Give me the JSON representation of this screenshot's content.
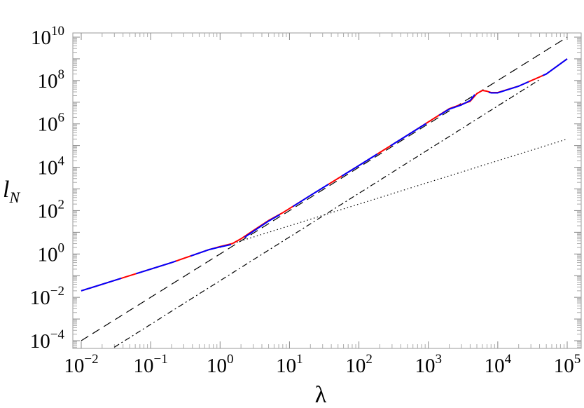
{
  "chart_data": {
    "type": "line",
    "title": "",
    "xlabel": "λ",
    "ylabel": "l",
    "ylabel_subscript": "N",
    "x_scale": "log",
    "y_scale": "log",
    "xlim": [
      0.01,
      100000
    ],
    "ylim": [
      5e-05,
      10000000000
    ],
    "grid": false,
    "x_ticks": [
      {
        "base": "10",
        "exp": "−2",
        "value": 0.01
      },
      {
        "base": "10",
        "exp": "−1",
        "value": 0.1
      },
      {
        "base": "10",
        "exp": "0",
        "value": 1
      },
      {
        "base": "10",
        "exp": "1",
        "value": 10
      },
      {
        "base": "10",
        "exp": "2",
        "value": 100
      },
      {
        "base": "10",
        "exp": "3",
        "value": 1000
      },
      {
        "base": "10",
        "exp": "4",
        "value": 10000
      },
      {
        "base": "10",
        "exp": "5",
        "value": 100000
      }
    ],
    "y_ticks": [
      {
        "base": "10",
        "exp": "−4",
        "value": 0.0001
      },
      {
        "base": "10",
        "exp": "−2",
        "value": 0.01
      },
      {
        "base": "10",
        "exp": "0",
        "value": 1
      },
      {
        "base": "10",
        "exp": "2",
        "value": 100
      },
      {
        "base": "10",
        "exp": "4",
        "value": 10000
      },
      {
        "base": "10",
        "exp": "6",
        "value": 1000000
      },
      {
        "base": "10",
        "exp": "8",
        "value": 100000000
      },
      {
        "base": "10",
        "exp": "10",
        "value": 10000000000
      }
    ],
    "series": [
      {
        "color": "#ff0000",
        "style": "solid",
        "x": [
          0.01,
          0.05,
          0.2,
          0.7,
          1.0,
          1.5,
          2,
          3,
          5,
          8,
          20,
          100,
          500,
          2000,
          3000,
          4000,
          5000,
          6000,
          7000,
          8000,
          10000,
          20000,
          50000,
          100000
        ],
        "y": [
          0.02,
          0.1,
          0.4,
          1.6,
          2.2,
          3.0,
          5,
          12,
          35,
          80,
          500,
          12000,
          300000,
          5000000,
          8000000,
          11000000.0,
          25000000.0,
          35000000.0,
          32000000.0,
          28000000.0,
          28000000.0,
          55000000.0,
          200000000.0,
          1000000000.0
        ]
      },
      {
        "color": "#0000ff",
        "style": "solid",
        "x": [
          0.01,
          0.05,
          0.2,
          0.7,
          1.0,
          1.5,
          2,
          3,
          5,
          8,
          20,
          100,
          500,
          2000,
          3000,
          4000,
          5000,
          6000,
          7000,
          8000,
          10000,
          20000,
          50000,
          100000
        ],
        "y": [
          0.02,
          0.1,
          0.4,
          1.6,
          2.1,
          2.8,
          4.5,
          11,
          33,
          78,
          500,
          12000,
          300000,
          4800000,
          7500000,
          12000000.0,
          30000000.0,
          33000000.0,
          30000000.0,
          27000000.0,
          27000000.0,
          55000000.0,
          200000000.0,
          1000000000.0
        ]
      },
      {
        "color": "#000000",
        "style": "dashed",
        "x": [
          0.01,
          100000
        ],
        "y": [
          0.0001,
          10000000000.0
        ]
      },
      {
        "color": "#000000",
        "style": "dashdot",
        "x": [
          0.03,
          40000
        ],
        "y": [
          5e-05,
          110000000.0
        ]
      },
      {
        "color": "#000000",
        "style": "dotted",
        "x": [
          1,
          100000
        ],
        "y": [
          2,
          200000
        ]
      }
    ]
  }
}
